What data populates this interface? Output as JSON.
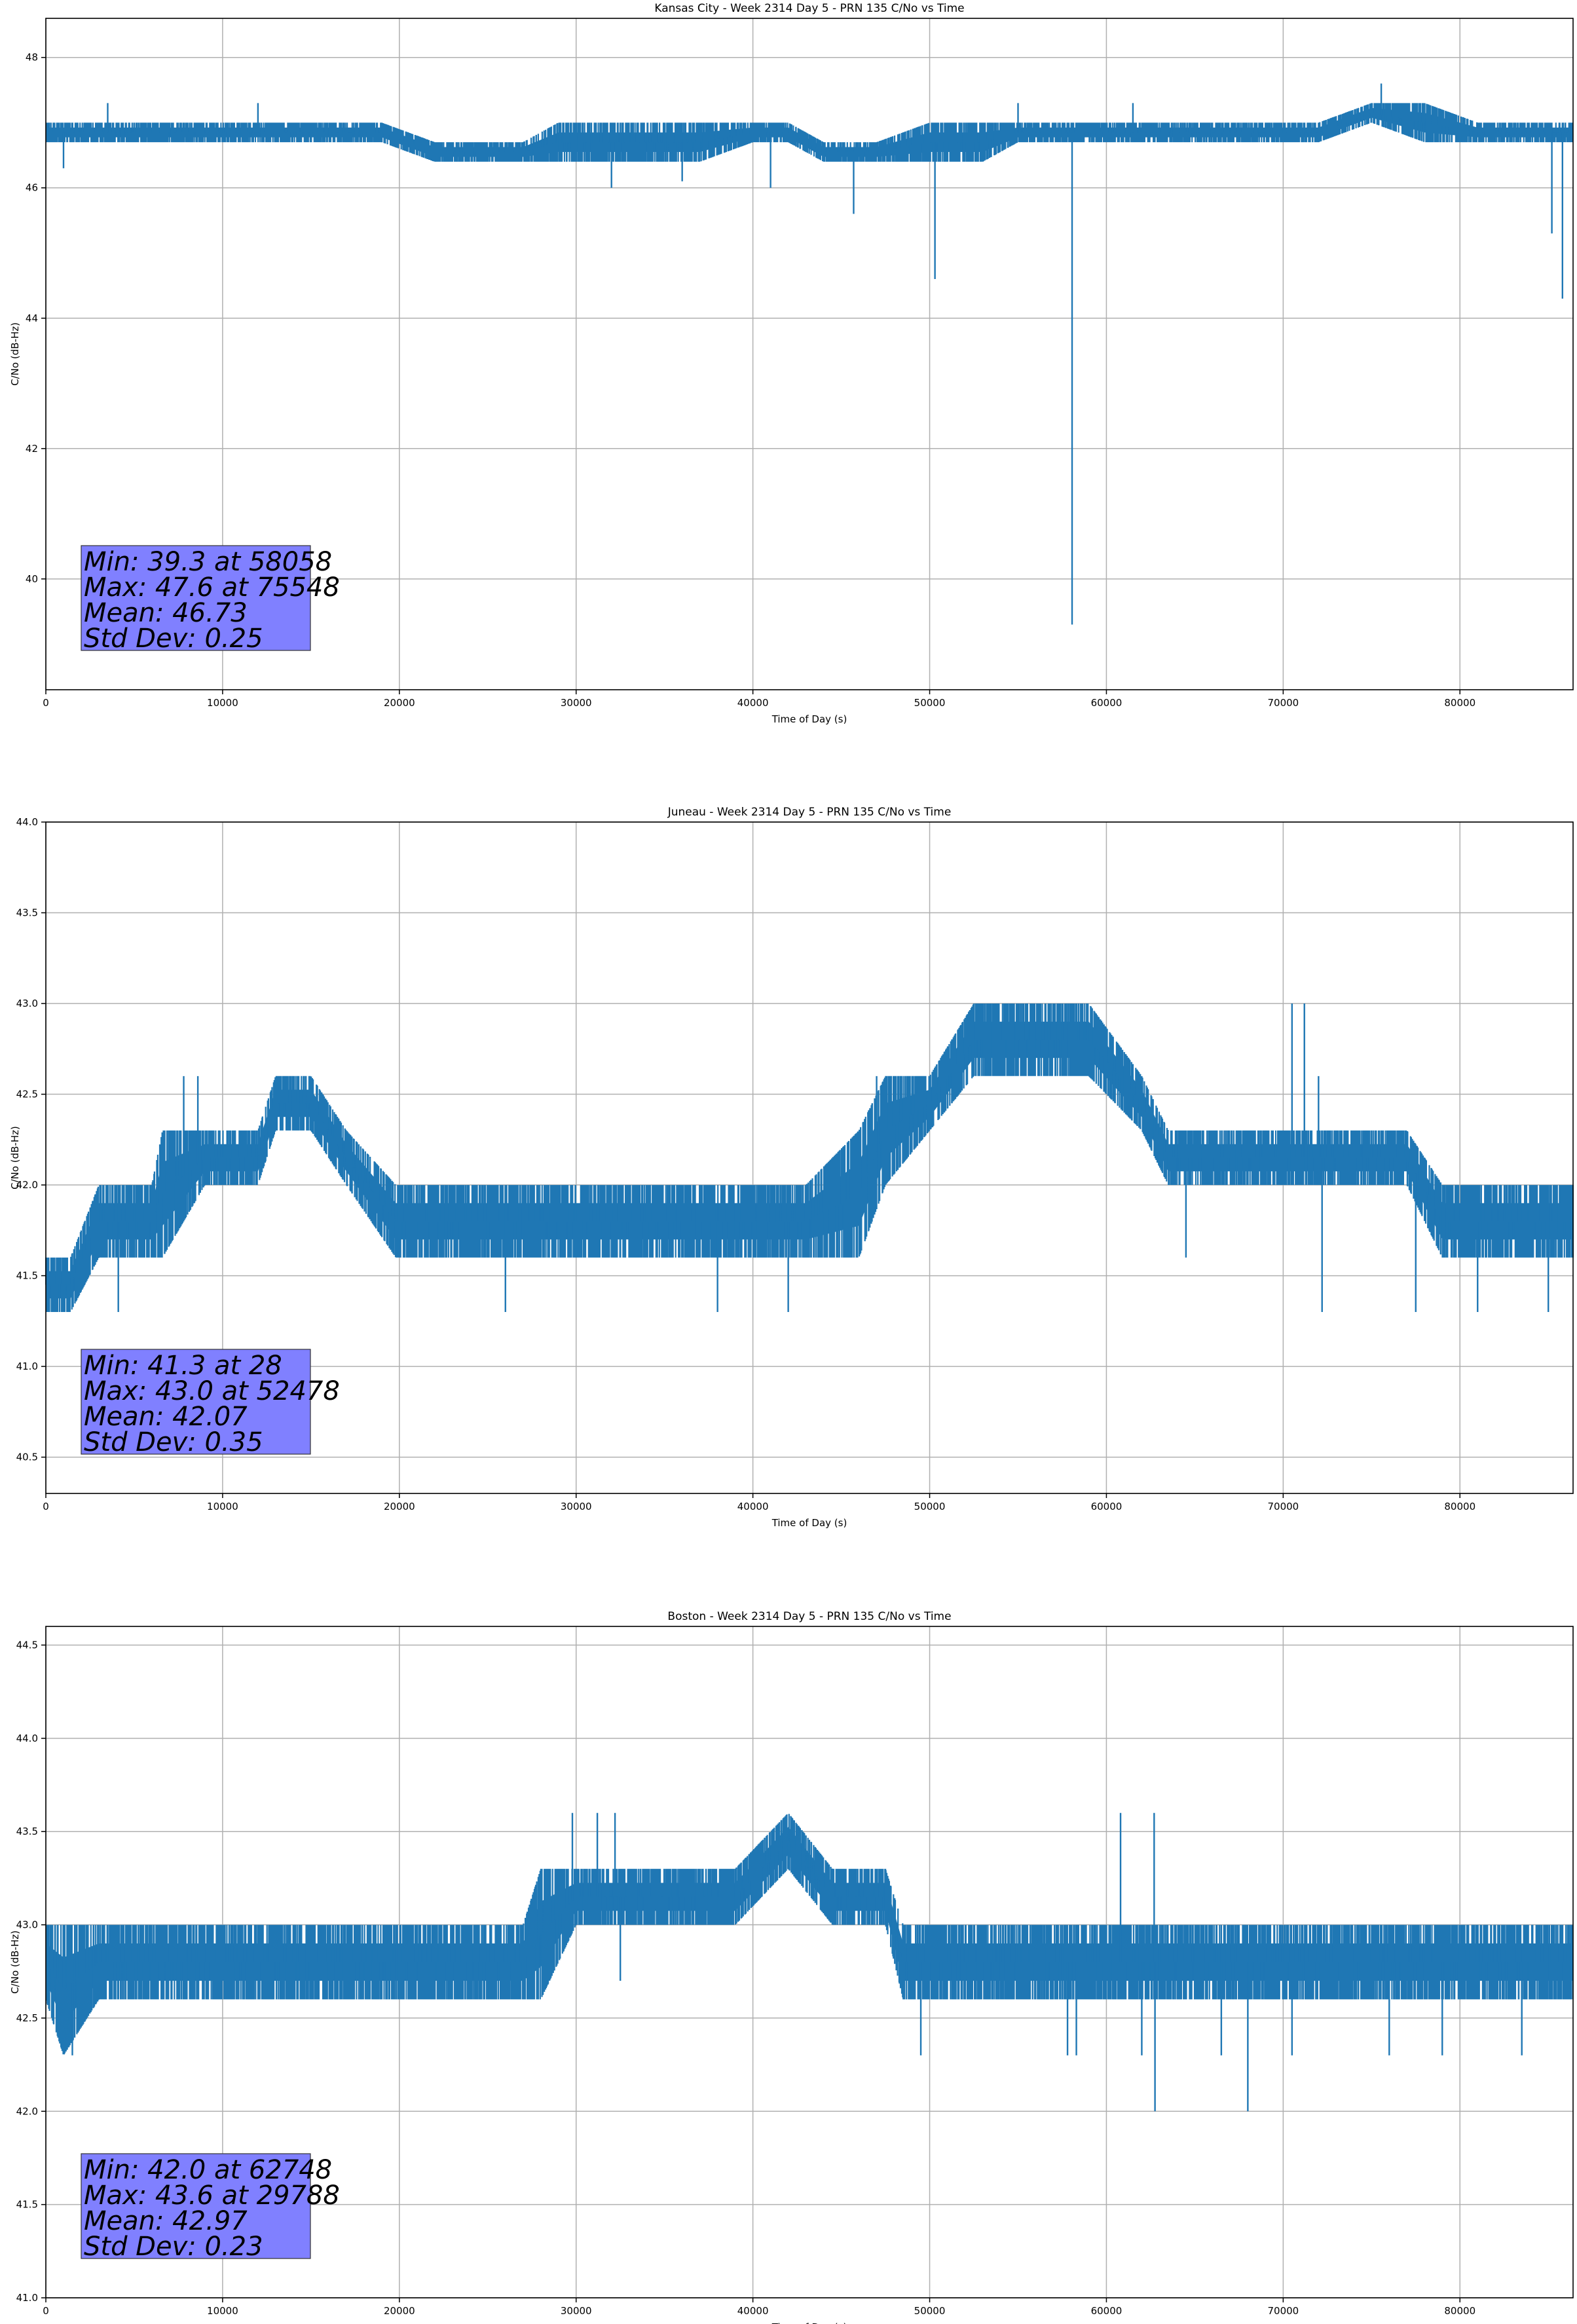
{
  "chart_data": [
    {
      "type": "line",
      "title": "Kansas City - Week 2314 Day 5 - PRN 135 C/No vs Time",
      "xlabel": "Time of Day (s)",
      "ylabel": "C/No (dB-Hz)",
      "xlim": [
        0,
        86400
      ],
      "ylim": [
        38.3,
        48.6
      ],
      "xticks": [
        0,
        10000,
        20000,
        30000,
        40000,
        50000,
        60000,
        70000,
        80000
      ],
      "yticks": [
        40,
        42,
        44,
        46,
        48
      ],
      "grid": true,
      "line_color": "#1f77b4",
      "stats_box_color": "#8080ff",
      "stats": [
        "Min: 39.3 at 58058",
        "Max: 47.6 at 75548",
        "Mean: 46.73",
        "Std Dev: 0.25"
      ],
      "series": [
        {
          "x": [
            0,
            2000,
            5000,
            8000,
            12000,
            17000,
            19000,
            22000,
            25000,
            27000,
            29000,
            31000,
            34000,
            37000,
            40000,
            42000,
            44000,
            47000,
            50000,
            53000,
            55000,
            57000,
            60000,
            63000,
            66000,
            69000,
            72000,
            75000,
            78000,
            81000,
            84000,
            86400
          ],
          "low": [
            46.7,
            46.7,
            46.7,
            46.7,
            46.7,
            46.7,
            46.7,
            46.4,
            46.4,
            46.4,
            46.4,
            46.4,
            46.4,
            46.4,
            46.7,
            46.7,
            46.4,
            46.4,
            46.4,
            46.4,
            46.7,
            46.7,
            46.7,
            46.7,
            46.7,
            46.7,
            46.7,
            47.0,
            46.7,
            46.7,
            46.7,
            46.7
          ],
          "high": [
            47.0,
            47.0,
            47.0,
            47.0,
            47.0,
            47.0,
            47.0,
            46.7,
            46.7,
            46.7,
            47.0,
            47.0,
            47.0,
            47.0,
            47.0,
            47.0,
            46.7,
            46.7,
            47.0,
            47.0,
            47.0,
            47.0,
            47.0,
            47.0,
            47.0,
            47.0,
            47.0,
            47.3,
            47.3,
            47.0,
            47.0,
            47.0
          ],
          "spikes": [
            [
              58058,
              39.3
            ],
            [
              50300,
              44.6
            ],
            [
              45700,
              45.6
            ],
            [
              41000,
              46.0
            ],
            [
              85200,
              45.3
            ],
            [
              85800,
              44.3
            ],
            [
              75548,
              47.6
            ],
            [
              1000,
              46.3
            ],
            [
              32000,
              46.0
            ],
            [
              36000,
              46.1
            ],
            [
              55000,
              47.3
            ],
            [
              61500,
              47.3
            ],
            [
              12000,
              47.3
            ],
            [
              3500,
              47.3
            ]
          ]
        }
      ]
    },
    {
      "type": "line",
      "title": "Juneau - Week 2314 Day 5 - PRN 135 C/No vs Time",
      "xlabel": "Time of Day (s)",
      "ylabel": "C/No (dB-Hz)",
      "xlim": [
        0,
        86400
      ],
      "ylim": [
        40.3,
        44.0
      ],
      "xticks": [
        0,
        10000,
        20000,
        30000,
        40000,
        50000,
        60000,
        70000,
        80000
      ],
      "yticks": [
        40.5,
        41.0,
        41.5,
        42.0,
        42.5,
        43.0,
        43.5,
        44.0
      ],
      "grid": true,
      "line_color": "#1f77b4",
      "stats_box_color": "#8080ff",
      "stats": [
        "Min: 41.3 at 28",
        "Max: 43.0 at 52478",
        "Mean: 42.07",
        "Std Dev: 0.35"
      ],
      "series": [
        {
          "x": [
            0,
            1400,
            3000,
            6000,
            6600,
            9000,
            12000,
            13000,
            15000,
            17000,
            19800,
            22000,
            25000,
            28000,
            31000,
            34000,
            37000,
            40000,
            43000,
            46000,
            47500,
            50000,
            52500,
            55000,
            59000,
            62000,
            63500,
            67000,
            70000,
            73000,
            77000,
            79000,
            80000,
            83000,
            86400
          ],
          "low": [
            41.3,
            41.3,
            41.6,
            41.6,
            41.6,
            42.0,
            42.0,
            42.3,
            42.3,
            42.0,
            41.6,
            41.6,
            41.6,
            41.6,
            41.6,
            41.6,
            41.6,
            41.6,
            41.6,
            41.6,
            42.0,
            42.3,
            42.6,
            42.6,
            42.6,
            42.3,
            42.0,
            42.0,
            42.0,
            42.0,
            42.0,
            41.6,
            41.6,
            41.6,
            41.6
          ],
          "high": [
            41.6,
            41.6,
            42.0,
            42.0,
            42.3,
            42.3,
            42.3,
            42.6,
            42.6,
            42.3,
            42.0,
            42.0,
            42.0,
            42.0,
            42.0,
            42.0,
            42.0,
            42.0,
            42.0,
            42.3,
            42.6,
            42.6,
            43.0,
            43.0,
            43.0,
            42.6,
            42.3,
            42.3,
            42.3,
            42.3,
            42.3,
            42.0,
            42.0,
            42.0,
            42.0
          ],
          "spikes": [
            [
              28,
              41.3
            ],
            [
              4100,
              41.3
            ],
            [
              7800,
              42.6
            ],
            [
              8600,
              42.6
            ],
            [
              26000,
              41.3
            ],
            [
              38000,
              41.3
            ],
            [
              42000,
              41.3
            ],
            [
              47000,
              42.6
            ],
            [
              70500,
              43.0
            ],
            [
              71200,
              43.0
            ],
            [
              72000,
              42.6
            ],
            [
              64500,
              41.6
            ],
            [
              72200,
              41.3
            ],
            [
              77500,
              41.3
            ],
            [
              81000,
              41.3
            ],
            [
              85000,
              41.3
            ]
          ]
        }
      ]
    },
    {
      "type": "line",
      "title": "Boston - Week 2314 Day 5 - PRN 135 C/No vs Time",
      "xlabel": "Time of Day (s)",
      "ylabel": "C/No (dB-Hz)",
      "xlim": [
        0,
        86400
      ],
      "ylim": [
        41.0,
        44.6
      ],
      "xticks": [
        0,
        10000,
        20000,
        30000,
        40000,
        50000,
        60000,
        70000,
        80000
      ],
      "yticks": [
        41.0,
        41.5,
        42.0,
        42.5,
        43.0,
        43.5,
        44.0,
        44.5
      ],
      "grid": true,
      "line_color": "#1f77b4",
      "stats_box_color": "#8080ff",
      "stats": [
        "Min: 42.0 at 62748",
        "Max: 43.6 at 29788",
        "Mean: 42.97",
        "Std Dev: 0.23"
      ],
      "series": [
        {
          "x": [
            0,
            1000,
            3000,
            6000,
            9000,
            12000,
            15000,
            18000,
            21000,
            24000,
            27000,
            28000,
            30000,
            33000,
            36000,
            39000,
            42000,
            44500,
            47500,
            48500,
            51000,
            54000,
            57000,
            60000,
            63000,
            66000,
            69000,
            72000,
            75000,
            78000,
            81000,
            84000,
            86400
          ],
          "low": [
            42.6,
            42.3,
            42.6,
            42.6,
            42.6,
            42.6,
            42.6,
            42.6,
            42.6,
            42.6,
            42.6,
            42.6,
            43.0,
            43.0,
            43.0,
            43.0,
            43.3,
            43.0,
            43.0,
            42.6,
            42.6,
            42.6,
            42.6,
            42.6,
            42.6,
            42.6,
            42.6,
            42.6,
            42.6,
            42.6,
            42.6,
            42.6,
            42.6
          ],
          "high": [
            43.0,
            43.0,
            43.0,
            43.0,
            43.0,
            43.0,
            43.0,
            43.0,
            43.0,
            43.0,
            43.0,
            43.3,
            43.3,
            43.3,
            43.3,
            43.3,
            43.6,
            43.3,
            43.3,
            43.0,
            43.0,
            43.0,
            43.0,
            43.0,
            43.0,
            43.0,
            43.0,
            43.0,
            43.0,
            43.0,
            43.0,
            43.0,
            43.0
          ],
          "spikes": [
            [
              62748,
              42.0
            ],
            [
              68000,
              42.0
            ],
            [
              29788,
              43.6
            ],
            [
              31200,
              43.6
            ],
            [
              32200,
              43.6
            ],
            [
              60800,
              43.6
            ],
            [
              62700,
              43.6
            ],
            [
              49500,
              42.3
            ],
            [
              57800,
              42.3
            ],
            [
              58300,
              42.3
            ],
            [
              62000,
              42.3
            ],
            [
              66500,
              42.3
            ],
            [
              70500,
              42.3
            ],
            [
              76000,
              42.3
            ],
            [
              79000,
              42.3
            ],
            [
              83500,
              42.3
            ],
            [
              1500,
              42.3
            ],
            [
              32500,
              42.7
            ]
          ]
        }
      ]
    }
  ]
}
